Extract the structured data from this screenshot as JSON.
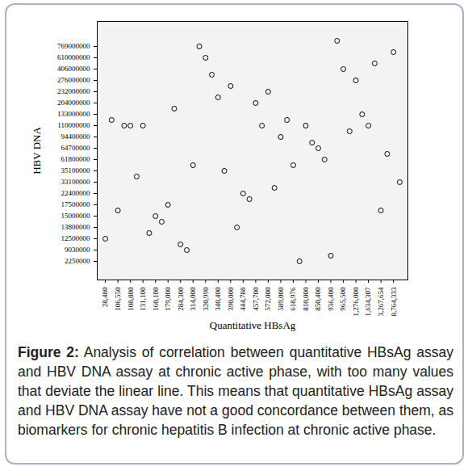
{
  "chart_data": {
    "type": "scatter",
    "x_label": "Quantitative HBsAg",
    "y_label": "HBV DNA",
    "caption_label": "Figure 2:",
    "caption": "Analysis of correlation between quantitative HBsAg assay and HBV DNA assay at chronic active phase, with too many values that deviate the linear line. This means that quantitative HBsAg assay and HBV DNA assay have not a good concordance between them, as biomarkers for chronic hepatitis B infection at chronic active phase.",
    "categories": [
      "28,480",
      null,
      "106,550",
      null,
      "108,800",
      null,
      "131,100",
      null,
      "160,100",
      null,
      "179,000",
      null,
      "284,300",
      null,
      "314,000",
      null,
      "320,990",
      null,
      "340,400",
      null,
      "390,000",
      null,
      "444,788",
      null,
      "457,700",
      null,
      "572,000",
      null,
      "589,000",
      null,
      "618,976",
      null,
      "810,000",
      null,
      "850,400",
      null,
      "936,400",
      null,
      "965,500",
      null,
      "1,276,000",
      null,
      "1,634,307",
      null,
      "3,267,654",
      null,
      "8,764,333",
      null
    ],
    "y_categories": [
      "2250000",
      null,
      "9030000",
      null,
      "12500000",
      null,
      "13800000",
      null,
      "15000000",
      null,
      "17500000",
      null,
      "22400000",
      null,
      "33100000",
      null,
      "35100000",
      null,
      "61800000",
      null,
      "64700000",
      null,
      "94400000",
      null,
      "110000000",
      null,
      "133000000",
      null,
      "204000000",
      null,
      "232000000",
      null,
      "276000000",
      null,
      "406000000",
      null,
      "610000000",
      null,
      "769000000",
      null
    ],
    "values": [
      4,
      25,
      9,
      24,
      24,
      15,
      24,
      5,
      8,
      7,
      10,
      27,
      3,
      2,
      17,
      38,
      36,
      33,
      29,
      16,
      31,
      6,
      12,
      11,
      28,
      24,
      30,
      13,
      22,
      25,
      17,
      0,
      24,
      21,
      20,
      18,
      1,
      39,
      34,
      23,
      32,
      26,
      24,
      35,
      9,
      19,
      37,
      14
    ],
    "color": "#000000",
    "marker": "circle"
  }
}
